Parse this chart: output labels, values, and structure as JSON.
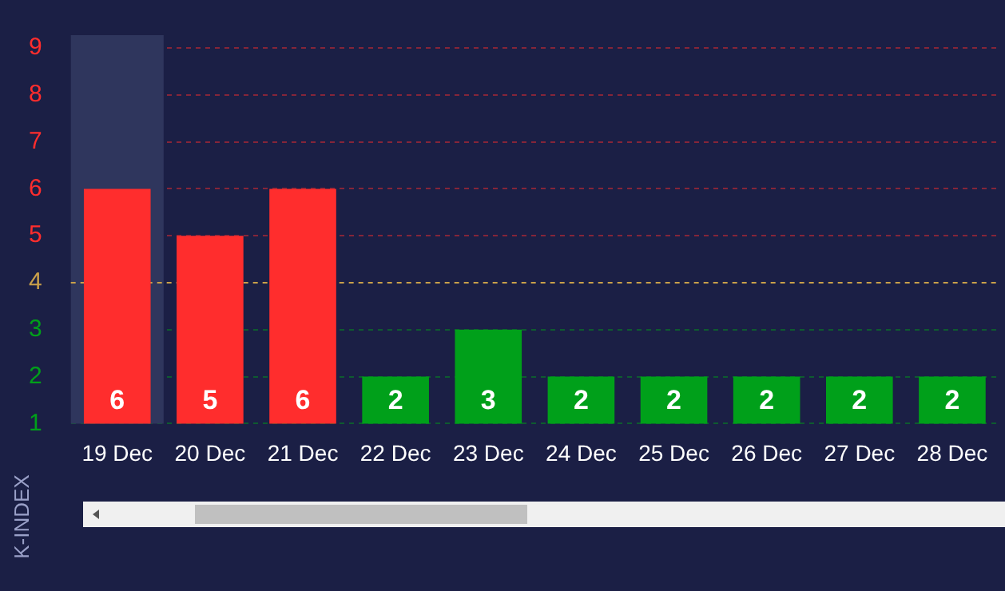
{
  "chart_data": {
    "type": "bar",
    "ylabel": "K-INDEX",
    "categories": [
      "19 Dec",
      "20 Dec",
      "21 Dec",
      "22 Dec",
      "23 Dec",
      "24 Dec",
      "25 Dec",
      "26 Dec",
      "27 Dec",
      "28 Dec"
    ],
    "values": [
      6,
      5,
      6,
      2,
      3,
      2,
      2,
      2,
      2,
      2
    ],
    "colors": [
      "#ff2d2d",
      "#ff2d2d",
      "#ff2d2d",
      "#00a01a",
      "#00a01a",
      "#00a01a",
      "#00a01a",
      "#00a01a",
      "#00a01a",
      "#00a01a"
    ],
    "ylim": [
      1,
      9
    ],
    "yticks": [
      1,
      2,
      3,
      4,
      5,
      6,
      7,
      8,
      9
    ],
    "ref_lines": [
      {
        "axis": "y",
        "value": 4,
        "color": "#c9a04a",
        "line_style": "dashed"
      }
    ],
    "bands": [
      {
        "axis": "x",
        "from": "19 Dec",
        "to": "19 Dec",
        "color": "#2f365d"
      }
    ],
    "grid": "y",
    "line_style": "dashed",
    "data_labels": true,
    "legend": false
  }
}
